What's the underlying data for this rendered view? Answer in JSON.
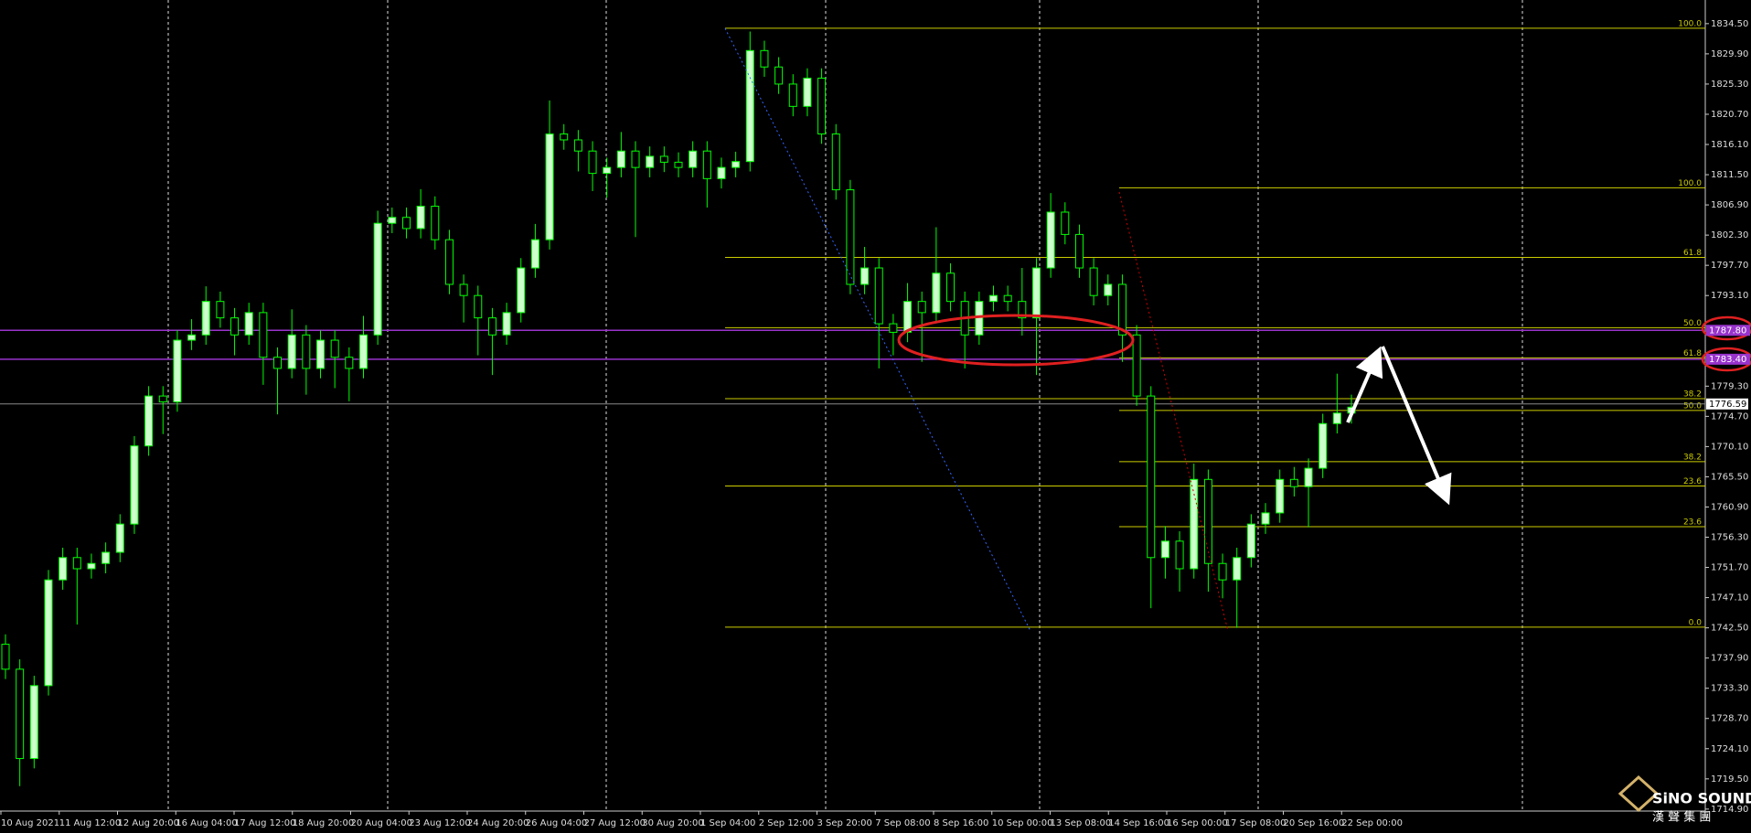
{
  "chart_data": {
    "type": "candlestick",
    "up_color": "#ccffcc",
    "down_color": "#000000",
    "wick_color": "#00ff00",
    "ylim": [
      1714.6,
      1838.1
    ],
    "yticks": [
      {
        "value": 1834.5,
        "label": "1834.50"
      },
      {
        "value": 1829.9,
        "label": "1829.90"
      },
      {
        "value": 1825.3,
        "label": "1825.30"
      },
      {
        "value": 1820.7,
        "label": "1820.70"
      },
      {
        "value": 1816.1,
        "label": "1816.10"
      },
      {
        "value": 1811.5,
        "label": "1811.50"
      },
      {
        "value": 1806.9,
        "label": "1806.90"
      },
      {
        "value": 1802.3,
        "label": "1802.30"
      },
      {
        "value": 1797.7,
        "label": "1797.70"
      },
      {
        "value": 1793.1,
        "label": "1793.10"
      },
      {
        "value": 1779.3,
        "label": "1779.30"
      },
      {
        "value": 1774.7,
        "label": "1774.70"
      },
      {
        "value": 1770.1,
        "label": "1770.10"
      },
      {
        "value": 1765.5,
        "label": "1765.50"
      },
      {
        "value": 1760.9,
        "label": "1760.90"
      },
      {
        "value": 1756.3,
        "label": "1756.30"
      },
      {
        "value": 1751.7,
        "label": "1751.70"
      },
      {
        "value": 1747.1,
        "label": "1747.10"
      },
      {
        "value": 1742.5,
        "label": "1742.50"
      },
      {
        "value": 1737.9,
        "label": "1737.90"
      },
      {
        "value": 1733.3,
        "label": "1733.30"
      },
      {
        "value": 1728.7,
        "label": "1728.70"
      },
      {
        "value": 1724.1,
        "label": "1724.10"
      },
      {
        "value": 1719.5,
        "label": "1719.50"
      },
      {
        "value": 1714.9,
        "label": "1714.90"
      }
    ],
    "x_labels": [
      "10 Aug 2021",
      "11 Aug 12:00",
      "12 Aug 20:00",
      "16 Aug 04:00",
      "17 Aug 12:00",
      "18 Aug 20:00",
      "20 Aug 04:00",
      "23 Aug 12:00",
      "24 Aug 20:00",
      "26 Aug 04:00",
      "27 Aug 12:00",
      "30 Aug 20:00",
      "1 Sep 04:00",
      "2 Sep 12:00",
      "3 Sep 20:00",
      "7 Sep 08:00",
      "8 Sep 16:00",
      "10 Sep 00:00",
      "13 Sep 08:00",
      "14 Sep 16:00",
      "16 Sep 00:00",
      "17 Sep 08:00",
      "20 Sep 16:00",
      "22 Sep 00:00"
    ],
    "open": [
      1740.0,
      1736.2,
      1722.6,
      1733.7,
      1749.8,
      1753.2,
      1751.5,
      1752.3,
      1754.0,
      1758.3,
      1770.2,
      1777.8,
      1776.9,
      1786.3,
      1787.1,
      1792.2,
      1789.7,
      1787.1,
      1790.5,
      1783.7,
      1782.0,
      1787.1,
      1782.0,
      1786.3,
      1783.7,
      1782.0,
      1787.1,
      1804.1,
      1805.0,
      1803.3,
      1806.7,
      1801.6,
      1794.8,
      1793.1,
      1789.7,
      1787.1,
      1790.5,
      1797.3,
      1801.6,
      1817.7,
      1816.8,
      1815.1,
      1811.7,
      1812.6,
      1815.1,
      1812.6,
      1814.3,
      1813.4,
      1812.6,
      1815.1,
      1810.9,
      1812.6,
      1813.5,
      1830.4,
      1827.9,
      1825.3,
      1821.9,
      1826.2,
      1817.7,
      1809.2,
      1794.8,
      1797.3,
      1788.8,
      1787.5,
      1792.2,
      1790.5,
      1796.5,
      1792.2,
      1787.1,
      1792.2,
      1793.1,
      1792.2,
      1789.7,
      1797.3,
      1805.8,
      1802.4,
      1797.3,
      1793.1,
      1794.8,
      1787.1,
      1777.8,
      1753.2,
      1755.7,
      1751.5,
      1765.1,
      1752.3,
      1749.8,
      1753.2,
      1758.3,
      1760.0,
      1765.1,
      1764.0,
      1766.8,
      1773.6,
      1775.2
    ],
    "high": [
      1741.5,
      1737.7,
      1735.2,
      1751.3,
      1754.7,
      1754.7,
      1753.8,
      1755.5,
      1759.8,
      1771.7,
      1779.3,
      1779.3,
      1787.8,
      1789.5,
      1794.5,
      1793.7,
      1791.2,
      1792.0,
      1792.0,
      1785.2,
      1791.0,
      1788.6,
      1787.8,
      1787.8,
      1785.2,
      1790.0,
      1806.0,
      1806.5,
      1806.5,
      1809.3,
      1808.2,
      1803.1,
      1796.3,
      1794.6,
      1791.2,
      1792.0,
      1798.8,
      1804.0,
      1822.8,
      1819.2,
      1818.3,
      1816.6,
      1814.1,
      1818.0,
      1816.6,
      1815.8,
      1815.8,
      1814.9,
      1816.6,
      1816.6,
      1814.1,
      1815.0,
      1833.3,
      1831.9,
      1829.4,
      1826.8,
      1827.7,
      1827.7,
      1819.2,
      1810.7,
      1800.5,
      1798.8,
      1790.3,
      1795.0,
      1793.7,
      1803.5,
      1798.0,
      1793.7,
      1793.7,
      1794.6,
      1794.6,
      1797.3,
      1798.8,
      1808.7,
      1807.3,
      1803.9,
      1798.8,
      1796.3,
      1796.3,
      1788.6,
      1779.3,
      1758.0,
      1757.2,
      1767.5,
      1766.6,
      1753.8,
      1754.7,
      1759.8,
      1761.5,
      1766.6,
      1767.0,
      1768.3,
      1775.1,
      1781.2,
      1778.0
    ],
    "low": [
      1734.7,
      1718.4,
      1721.1,
      1732.2,
      1748.3,
      1743.0,
      1750.0,
      1750.8,
      1752.5,
      1756.8,
      1768.7,
      1772.0,
      1775.4,
      1784.8,
      1785.6,
      1788.2,
      1784.0,
      1785.6,
      1779.5,
      1775.0,
      1780.5,
      1778.0,
      1780.5,
      1779.0,
      1777.0,
      1780.5,
      1785.6,
      1802.6,
      1801.8,
      1801.8,
      1800.1,
      1793.3,
      1789.0,
      1784.0,
      1781.0,
      1785.6,
      1789.0,
      1795.8,
      1800.1,
      1815.3,
      1812.0,
      1809.0,
      1808.0,
      1811.1,
      1802.0,
      1811.1,
      1811.9,
      1811.1,
      1811.1,
      1806.5,
      1809.4,
      1811.1,
      1812.0,
      1826.4,
      1823.8,
      1820.4,
      1820.4,
      1816.2,
      1807.7,
      1793.3,
      1793.3,
      1782.0,
      1784.0,
      1786.0,
      1783.0,
      1789.0,
      1790.7,
      1782.0,
      1785.6,
      1790.7,
      1790.7,
      1787.0,
      1781.0,
      1795.8,
      1800.9,
      1795.8,
      1791.6,
      1791.6,
      1783.0,
      1776.3,
      1745.5,
      1750.0,
      1748.0,
      1750.0,
      1748.0,
      1747.0,
      1742.5,
      1751.7,
      1756.8,
      1758.5,
      1762.5,
      1757.8,
      1765.3,
      1772.1,
      1773.6
    ],
    "close": [
      1736.2,
      1722.6,
      1733.7,
      1749.8,
      1753.2,
      1751.5,
      1752.3,
      1754.0,
      1758.3,
      1770.2,
      1777.8,
      1776.9,
      1786.3,
      1787.1,
      1792.2,
      1789.7,
      1787.1,
      1790.5,
      1783.7,
      1782.0,
      1787.1,
      1782.0,
      1786.3,
      1783.7,
      1782.0,
      1787.1,
      1804.1,
      1805.0,
      1803.3,
      1806.7,
      1801.6,
      1794.8,
      1793.1,
      1789.7,
      1787.1,
      1790.5,
      1797.3,
      1801.6,
      1817.7,
      1816.8,
      1815.1,
      1811.7,
      1812.6,
      1815.1,
      1812.6,
      1814.3,
      1813.4,
      1812.6,
      1815.1,
      1810.9,
      1812.6,
      1813.5,
      1830.4,
      1827.9,
      1825.3,
      1821.9,
      1826.2,
      1817.7,
      1809.2,
      1794.8,
      1797.3,
      1788.8,
      1787.5,
      1792.2,
      1790.5,
      1796.5,
      1792.2,
      1787.1,
      1792.2,
      1793.1,
      1792.2,
      1789.7,
      1797.3,
      1805.8,
      1802.4,
      1797.3,
      1793.1,
      1794.8,
      1787.1,
      1777.8,
      1753.2,
      1755.7,
      1751.5,
      1765.1,
      1752.3,
      1749.8,
      1753.2,
      1758.3,
      1760.0,
      1765.1,
      1764.0,
      1766.8,
      1773.6,
      1775.2,
      1776.1
    ],
    "fibonacci": [
      {
        "color": "#cccc00",
        "levels": [
          {
            "label": "100.0",
            "price": 1833.8
          },
          {
            "label": "61.8",
            "price": 1798.9
          },
          {
            "label": "50.0",
            "price": 1788.2
          },
          {
            "label": "38.2",
            "price": 1777.4
          },
          {
            "label": "23.6",
            "price": 1764.1
          },
          {
            "label": "0.0",
            "price": 1742.6
          }
        ]
      },
      {
        "color": "#cccc00",
        "levels": [
          {
            "label": "100.0",
            "price": 1809.5
          },
          {
            "label": "61.8",
            "price": 1783.6
          },
          {
            "label": "50.0",
            "price": 1775.6
          },
          {
            "label": "38.2",
            "price": 1767.8
          },
          {
            "label": "23.6",
            "price": 1757.9
          }
        ]
      }
    ],
    "hlines": [
      {
        "price": 1787.8,
        "label": "1787.80",
        "color": "#9933cc"
      },
      {
        "price": 1783.4,
        "label": "1783.40",
        "color": "#9933cc"
      }
    ],
    "current_price": {
      "price": 1776.59,
      "label": "1776.59",
      "color": "#888888"
    }
  },
  "watermark": {
    "name": "SiNO SOUND",
    "subtitle": "漢 聲 集 團"
  }
}
